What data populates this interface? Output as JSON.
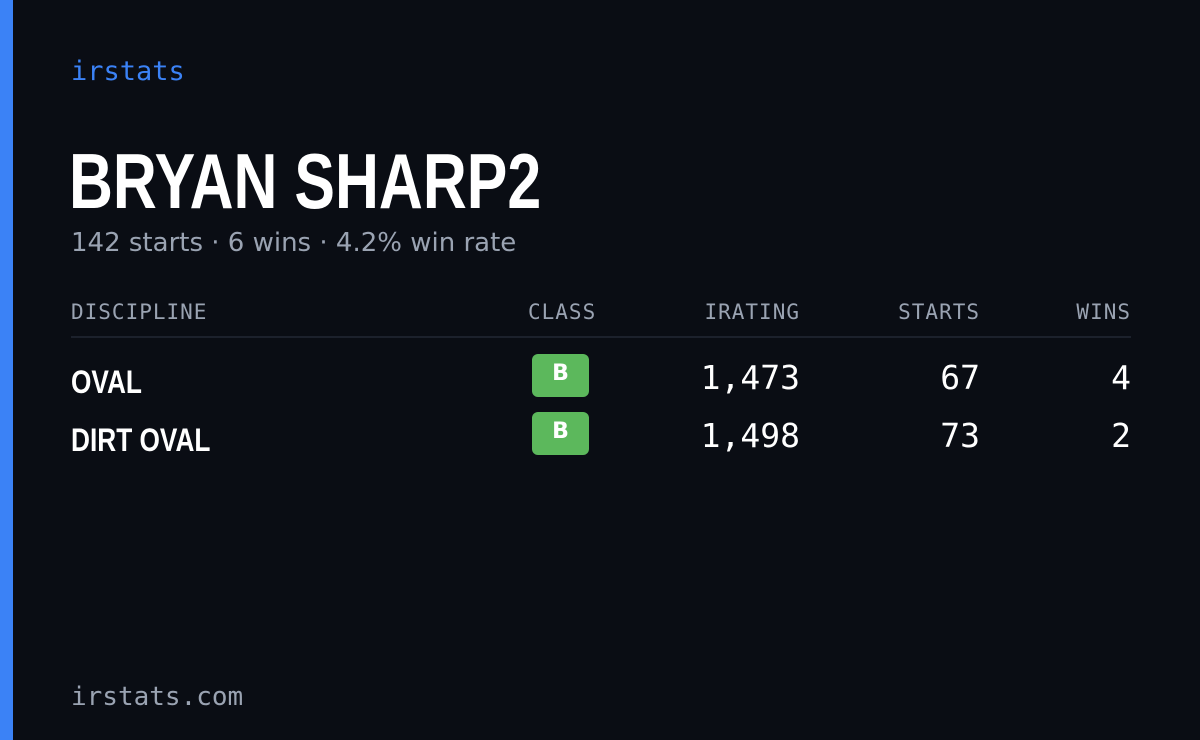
{
  "brand": "irstats",
  "profile": {
    "name": "BRYAN SHARP2",
    "summary": "142 starts · 6 wins · 4.2% win rate"
  },
  "table": {
    "headers": [
      "DISCIPLINE",
      "CLASS",
      "IRATING",
      "STARTS",
      "WINS"
    ],
    "rows": [
      [
        "OVAL",
        "B",
        "1,473",
        "67",
        "4"
      ],
      [
        "DIRT OVAL",
        "B",
        "1,498",
        "73",
        "2"
      ]
    ]
  },
  "footer": "irstats.com"
}
